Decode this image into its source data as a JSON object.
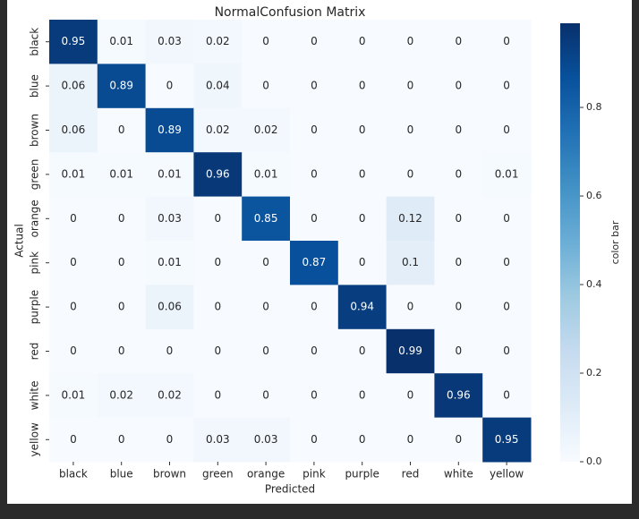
{
  "chart_data": {
    "type": "heatmap",
    "title": "NormalConfusion Matrix",
    "x_label": "Predicted",
    "y_label": "Actual",
    "x_categories": [
      "black",
      "blue",
      "brown",
      "green",
      "orange",
      "pink",
      "purple",
      "red",
      "white",
      "yellow"
    ],
    "y_categories": [
      "black",
      "blue",
      "brown",
      "green",
      "orange",
      "pink",
      "purple",
      "red",
      "white",
      "yellow"
    ],
    "values": [
      [
        0.95,
        0.01,
        0.03,
        0.02,
        0,
        0,
        0,
        0,
        0,
        0
      ],
      [
        0.06,
        0.89,
        0,
        0.04,
        0,
        0,
        0,
        0,
        0,
        0
      ],
      [
        0.06,
        0,
        0.89,
        0.02,
        0.02,
        0,
        0,
        0,
        0,
        0
      ],
      [
        0.01,
        0.01,
        0.01,
        0.96,
        0.01,
        0,
        0,
        0,
        0,
        0.01
      ],
      [
        0,
        0,
        0.03,
        0,
        0.85,
        0,
        0,
        0.12,
        0,
        0
      ],
      [
        0,
        0,
        0.01,
        0,
        0,
        0.87,
        0,
        0.1,
        0,
        0
      ],
      [
        0,
        0,
        0.06,
        0,
        0,
        0,
        0.94,
        0,
        0,
        0
      ],
      [
        0,
        0,
        0,
        0,
        0,
        0,
        0,
        0.99,
        0,
        0
      ],
      [
        0.01,
        0.02,
        0.02,
        0,
        0,
        0,
        0,
        0,
        0.96,
        0
      ],
      [
        0,
        0,
        0,
        0.03,
        0.03,
        0,
        0,
        0,
        0,
        0.95
      ]
    ],
    "colors": [
      "#f7fbff",
      "#deebf7",
      "#c6dbef",
      "#9ecae1",
      "#6baed6",
      "#4292c6",
      "#2171b5",
      "#08519c",
      "#08306b"
    ],
    "colorbar_label": "color bar",
    "clim": [
      0,
      0.99
    ],
    "cticks": [
      {
        "value": 0,
        "label": "0.0"
      },
      {
        "value": 0.2,
        "label": "0.2"
      },
      {
        "value": 0.4,
        "label": "0.4"
      },
      {
        "value": 0.6,
        "label": "0.6"
      },
      {
        "value": 0.8,
        "label": "0.8"
      }
    ]
  }
}
